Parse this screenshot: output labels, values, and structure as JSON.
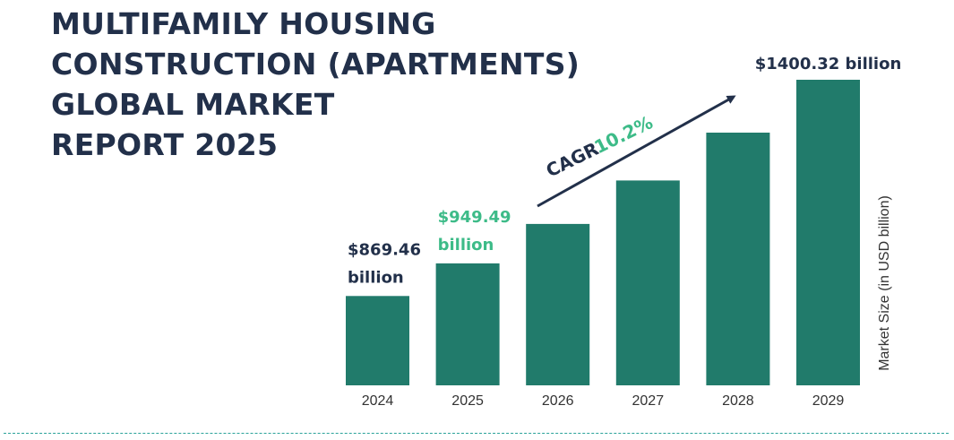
{
  "title_lines": [
    "MULTIFAMILY HOUSING",
    "CONSTRUCTION (APARTMENTS)",
    "GLOBAL MARKET",
    "REPORT 2025"
  ],
  "cagr": {
    "label": "CAGR",
    "value": "10.2%"
  },
  "colors": {
    "bar": "#217b6b",
    "title": "#22304a",
    "accent": "#3dbb88",
    "arrow": "#22304a",
    "rule": "#2aa39a",
    "axis_text": "#333333"
  },
  "chart_data": {
    "type": "bar",
    "categories": [
      "2024",
      "2025",
      "2026",
      "2027",
      "2028",
      "2029"
    ],
    "values": [
      869.46,
      949.49,
      1046.3,
      1153.0,
      1270.6,
      1400.32
    ],
    "ylabel": "Market Size (in USD billion)",
    "ylim": [
      650,
      1400.32
    ],
    "grid": false,
    "legend": "none",
    "data_labels": [
      {
        "index": 0,
        "lines": [
          "$869.46",
          "billion"
        ],
        "color": "#22304a"
      },
      {
        "index": 1,
        "lines": [
          "$949.49",
          "billion"
        ],
        "color": "#3dbb88"
      },
      {
        "index": 5,
        "lines": [
          "$1400.32 billion"
        ],
        "color": "#22304a"
      }
    ]
  }
}
